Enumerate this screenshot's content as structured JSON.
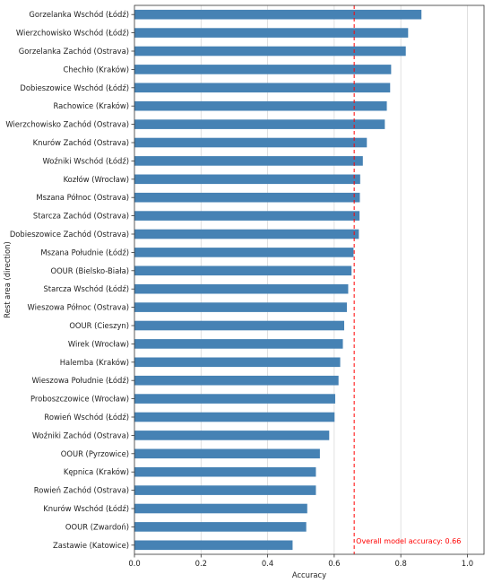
{
  "chart_data": {
    "type": "bar",
    "orientation": "horizontal",
    "categories": [
      "Gorzelanka Wschód (Łódź)",
      "Wierzchowisko Wschód (Łódź)",
      "Gorzelanka Zachód (Ostrava)",
      "Chechło (Kraków)",
      "Dobieszowice Wschód (Łódź)",
      "Rachowice (Kraków)",
      "Wierzchowisko Zachód (Ostrava)",
      "Knurów Zachód (Ostrava)",
      "Woźniki Wschód (Łódź)",
      "Kozłów (Wrocław)",
      "Mszana Północ (Ostrava)",
      "Starcza Zachód (Ostrava)",
      "Dobieszowice Zachód (Ostrava)",
      "Mszana Południe (Łódź)",
      "OOUR (Bielsko-Biała)",
      "Starcza Wschód (Łódź)",
      "Wieszowa Północ (Ostrava)",
      "OOUR (Cieszyn)",
      "Wirek (Wrocław)",
      "Halemba (Kraków)",
      "Wieszowa Południe (Łódź)",
      "Proboszczowice (Wrocław)",
      "Rowień Wschód (Łódź)",
      "Woźniki Zachód (Ostrava)",
      "OOUR (Pyrzowice)",
      "Kępnica (Kraków)",
      "Rowień Zachód (Ostrava)",
      "Knurów Wschód (Łódź)",
      "OOUR (Zwardoń)",
      "Zastawie (Katowice)"
    ],
    "values": [
      0.862,
      0.822,
      0.815,
      0.771,
      0.768,
      0.758,
      0.752,
      0.698,
      0.686,
      0.678,
      0.677,
      0.676,
      0.674,
      0.658,
      0.652,
      0.642,
      0.638,
      0.63,
      0.626,
      0.618,
      0.613,
      0.603,
      0.601,
      0.585,
      0.557,
      0.545,
      0.545,
      0.519,
      0.516,
      0.475
    ],
    "xlabel": "Accuracy",
    "ylabel": "Rest area (direction)",
    "xlim": [
      0.0,
      1.05
    ],
    "xticks": [
      "0.0",
      "0.2",
      "0.4",
      "0.6",
      "0.8",
      "1.0"
    ],
    "xtick_values": [
      0.0,
      0.2,
      0.4,
      0.6,
      0.8,
      1.0
    ],
    "grid": "vertical",
    "bar_color": "#4682b4",
    "reference_line": {
      "value": 0.66,
      "label": "Overall model accuracy: 0.66",
      "color": "#ff0000",
      "style": "dashed"
    }
  }
}
